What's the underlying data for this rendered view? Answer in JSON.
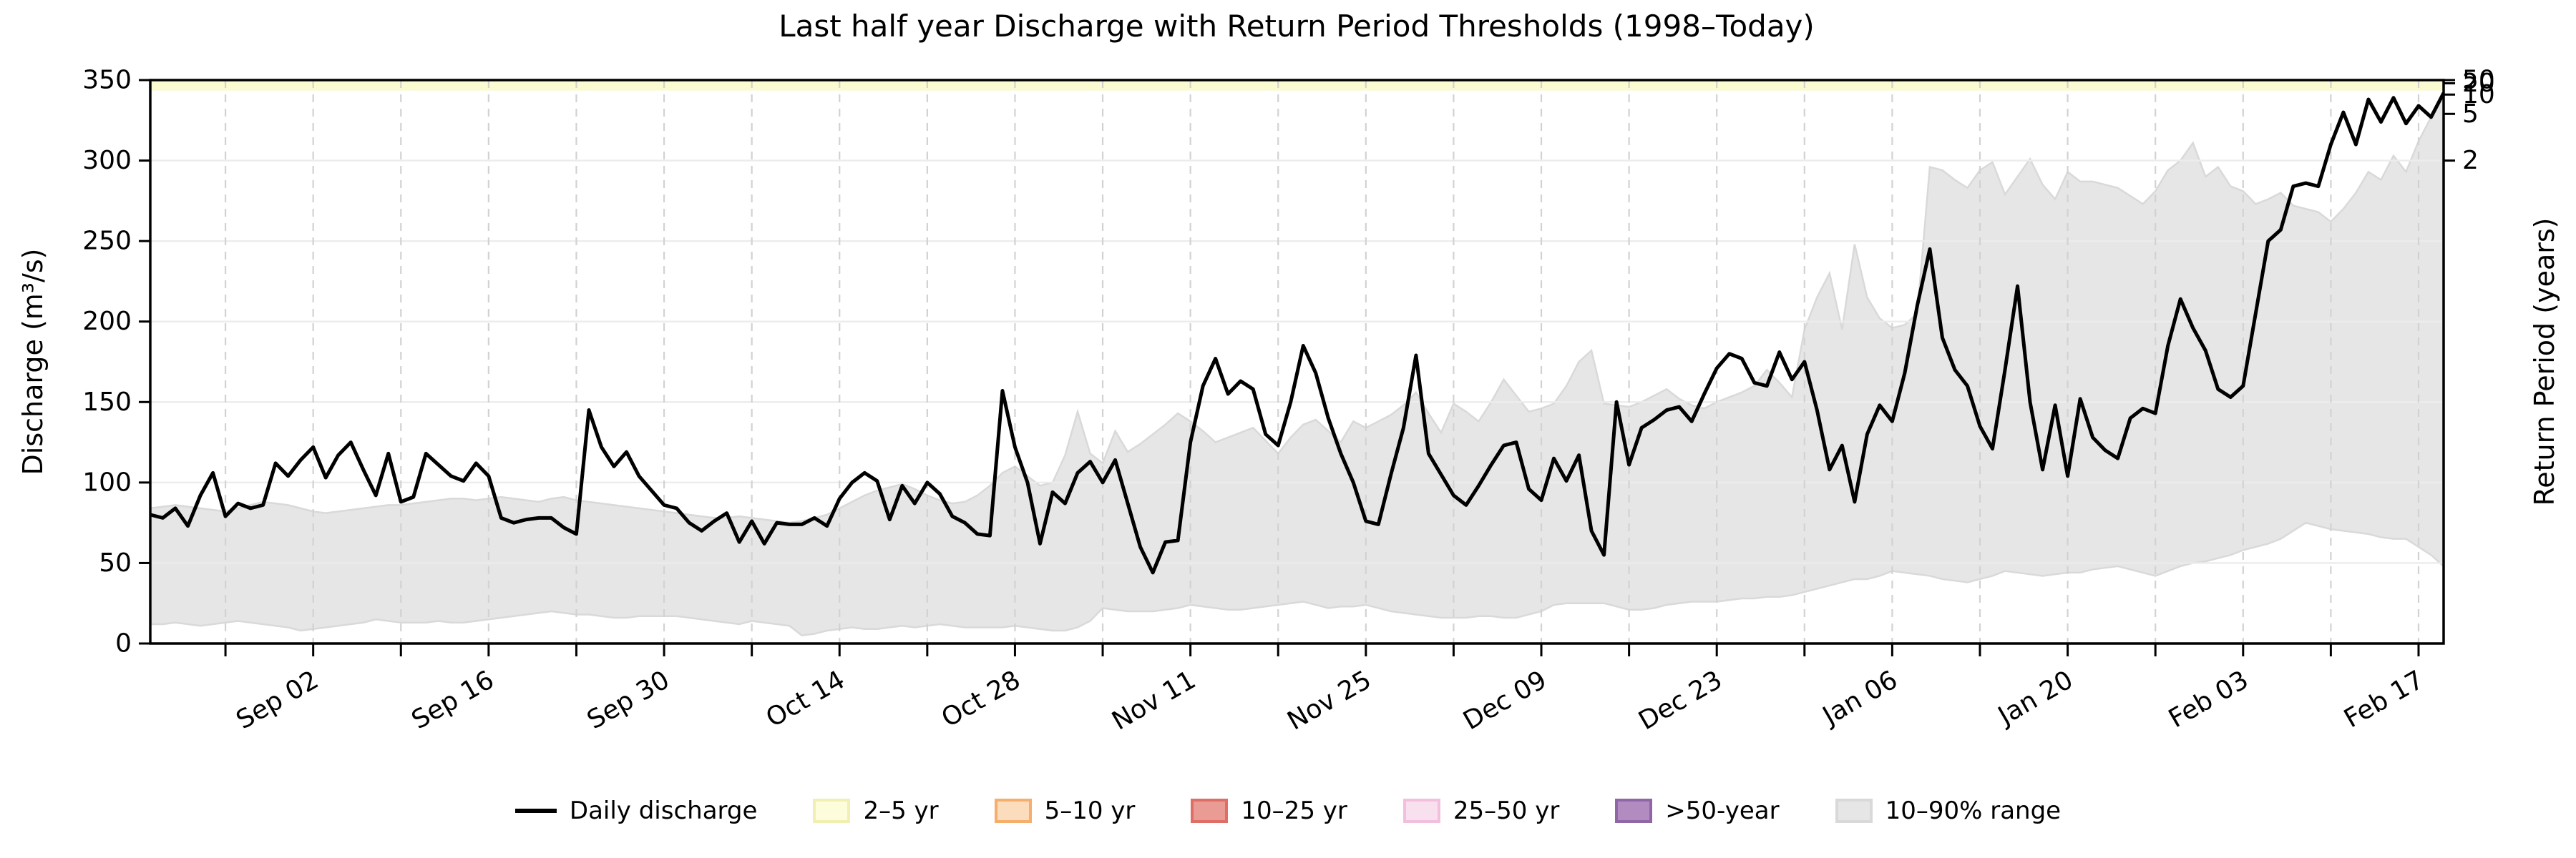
{
  "title": "Last half year Discharge with Return Period Thresholds (1998–Today)",
  "axes": {
    "left_label": "Discharge (m³/s)",
    "right_label": "Return Period (years)"
  },
  "legend": [
    {
      "label": "Daily discharge",
      "swatch": "line",
      "color": "#000000"
    },
    {
      "label": "2–5 yr",
      "swatch": "patch",
      "fill": "#FDFDDC",
      "border": "#F0F0B4"
    },
    {
      "label": "5–10 yr",
      "swatch": "patch",
      "fill": "#FBDCBC",
      "border": "#F5AE6C"
    },
    {
      "label": "10–25 yr",
      "swatch": "patch",
      "fill": "#EA9C94",
      "border": "#DF6F66"
    },
    {
      "label": "25–50 yr",
      "swatch": "patch",
      "fill": "#F9E0EE",
      "border": "#F2BFDC"
    },
    {
      "label": ">50-year",
      "swatch": "patch",
      "fill": "#B28CC0",
      "border": "#9066A6"
    },
    {
      "label": "10–90% range",
      "swatch": "patch",
      "fill": "#E6E6E6",
      "border": "#D9D9D9"
    }
  ],
  "chart_data": {
    "type": "line",
    "title": "Last half year Discharge with Return Period Thresholds (1998–Today)",
    "xlabel": "",
    "ylabel": "Discharge (m³/s)",
    "ylabel_right": "Return Period (years)",
    "ylim": [
      0,
      350
    ],
    "y_ticks": [
      0,
      50,
      100,
      150,
      200,
      250,
      300,
      350
    ],
    "x_start_date": "Aug 20",
    "x_end_date": "Feb 19",
    "grid": true,
    "legend_position": "bottom",
    "x_ticks": [
      {
        "day": 6,
        "label": ""
      },
      {
        "day": 13,
        "label": "Sep 02"
      },
      {
        "day": 20,
        "label": ""
      },
      {
        "day": 27,
        "label": "Sep 16"
      },
      {
        "day": 34,
        "label": ""
      },
      {
        "day": 41,
        "label": "Sep 30"
      },
      {
        "day": 48,
        "label": ""
      },
      {
        "day": 55,
        "label": "Oct 14"
      },
      {
        "day": 62,
        "label": ""
      },
      {
        "day": 69,
        "label": "Oct 28"
      },
      {
        "day": 76,
        "label": ""
      },
      {
        "day": 83,
        "label": "Nov 11"
      },
      {
        "day": 90,
        "label": ""
      },
      {
        "day": 97,
        "label": "Nov 25"
      },
      {
        "day": 104,
        "label": ""
      },
      {
        "day": 111,
        "label": "Dec 09"
      },
      {
        "day": 118,
        "label": ""
      },
      {
        "day": 125,
        "label": "Dec 23"
      },
      {
        "day": 132,
        "label": ""
      },
      {
        "day": 139,
        "label": "Jan 06"
      },
      {
        "day": 146,
        "label": ""
      },
      {
        "day": 153,
        "label": "Jan 20"
      },
      {
        "day": 160,
        "label": ""
      },
      {
        "day": 167,
        "label": "Feb 03"
      },
      {
        "day": 174,
        "label": ""
      },
      {
        "day": 181,
        "label": "Feb 17"
      }
    ],
    "return_period_ticks": [
      {
        "label": "50",
        "q": 352
      },
      {
        "label": "20",
        "q": 348
      },
      {
        "label": "10",
        "q": 341
      },
      {
        "label": "5",
        "q": 329
      },
      {
        "label": "2",
        "q": 300
      }
    ],
    "threshold_bands": [
      {
        "label": "2–5 yr",
        "q_from": 343.5,
        "q_to": 352,
        "fill": "#FBFBD2"
      }
    ],
    "series": [
      {
        "name": "Daily discharge",
        "color": "#000000",
        "values": [
          80,
          78,
          84,
          73,
          92,
          106,
          79,
          87,
          84,
          86,
          112,
          104,
          114,
          122,
          103,
          117,
          125,
          108,
          92,
          118,
          88,
          91,
          118,
          111,
          104,
          101,
          112,
          104,
          78,
          75,
          77,
          78,
          78,
          72,
          68,
          145,
          122,
          110,
          119,
          104,
          95,
          86,
          84,
          75,
          70,
          76,
          81,
          63,
          76,
          62,
          75,
          74,
          74,
          78,
          73,
          90,
          100,
          106,
          101,
          77,
          98,
          87,
          100,
          93,
          79,
          75,
          68,
          67,
          157,
          122,
          100,
          62,
          94,
          87,
          106,
          113,
          100,
          114,
          87,
          60,
          44,
          63,
          64,
          125,
          160,
          177,
          155,
          163,
          158,
          130,
          123,
          150,
          185,
          168,
          140,
          118,
          100,
          76,
          74,
          105,
          134,
          179,
          118,
          105,
          92,
          86,
          98,
          111,
          123,
          125,
          96,
          89,
          115,
          101,
          117,
          70,
          55,
          150,
          111,
          134,
          139,
          145,
          147,
          138,
          155,
          171,
          180,
          177,
          162,
          160,
          181,
          164,
          175,
          145,
          108,
          123,
          88,
          130,
          148,
          138,
          168,
          210,
          245,
          190,
          170,
          160,
          135,
          121,
          170,
          222,
          150,
          108,
          148,
          104,
          152,
          128,
          120,
          115,
          140,
          146,
          143,
          185,
          214,
          196,
          182,
          158,
          153,
          160,
          205,
          250,
          257,
          284,
          286,
          284,
          310,
          330,
          310,
          338,
          324,
          339,
          323,
          334,
          327,
          342
        ]
      },
      {
        "name": "10–90% upper",
        "fill": "#E6E6E6",
        "edge": "#D9D9D9",
        "values": [
          84,
          85,
          86,
          85,
          84,
          83,
          82,
          84,
          86,
          88,
          87,
          86,
          84,
          82,
          81,
          82,
          83,
          84,
          85,
          86,
          86,
          87,
          88,
          89,
          90,
          90,
          89,
          90,
          91,
          90,
          89,
          88,
          90,
          91,
          89,
          88,
          87,
          86,
          85,
          84,
          83,
          82,
          81,
          80,
          79,
          78,
          78,
          79,
          78,
          77,
          76,
          75,
          76,
          78,
          80,
          84,
          88,
          92,
          95,
          97,
          99,
          96,
          92,
          89,
          87,
          88,
          92,
          98,
          106,
          110,
          104,
          98,
          100,
          117,
          144,
          118,
          112,
          132,
          119,
          124,
          130,
          136,
          143,
          138,
          132,
          125,
          128,
          131,
          134,
          126,
          118,
          128,
          136,
          139,
          132,
          125,
          138,
          134,
          138,
          142,
          148,
          156,
          143,
          131,
          149,
          144,
          138,
          150,
          164,
          154,
          144,
          146,
          149,
          160,
          175,
          182,
          149,
          148,
          147,
          150,
          154,
          158,
          152,
          148,
          146,
          150,
          153,
          156,
          160,
          170,
          162,
          153,
          195,
          215,
          230,
          195,
          248,
          215,
          202,
          196,
          198,
          205,
          296,
          294,
          288,
          283,
          294,
          299,
          279,
          290,
          301,
          285,
          276,
          293,
          287,
          287,
          285,
          283,
          278,
          273,
          281,
          294,
          300,
          311,
          290,
          296,
          284,
          281,
          273,
          276,
          280,
          272,
          270,
          268,
          262,
          270,
          280,
          293,
          288,
          303,
          293,
          312,
          327,
          343
        ]
      },
      {
        "name": "10–90% lower",
        "values": [
          12,
          12,
          13,
          12,
          11,
          12,
          13,
          14,
          13,
          12,
          11,
          10,
          8,
          9,
          10,
          11,
          12,
          13,
          15,
          14,
          13,
          13,
          13,
          14,
          13,
          13,
          14,
          15,
          16,
          17,
          18,
          19,
          20,
          19,
          18,
          18,
          17,
          16,
          16,
          17,
          17,
          17,
          17,
          16,
          15,
          14,
          13,
          12,
          14,
          13,
          12,
          11,
          5,
          6,
          8,
          9,
          10,
          9,
          9,
          10,
          11,
          10,
          11,
          12,
          11,
          10,
          10,
          10,
          10,
          11,
          10,
          9,
          8,
          8,
          10,
          14,
          22,
          21,
          20,
          20,
          20,
          21,
          22,
          24,
          23,
          22,
          21,
          21,
          22,
          23,
          24,
          25,
          26,
          24,
          22,
          23,
          23,
          24,
          22,
          20,
          19,
          18,
          17,
          16,
          16,
          16,
          17,
          17,
          16,
          16,
          18,
          20,
          24,
          25,
          25,
          25,
          25,
          23,
          21,
          21,
          22,
          24,
          25,
          26,
          26,
          26,
          27,
          28,
          28,
          29,
          29,
          30,
          32,
          34,
          36,
          38,
          40,
          40,
          42,
          45,
          44,
          43,
          42,
          40,
          39,
          38,
          40,
          42,
          45,
          44,
          43,
          42,
          43,
          44,
          44,
          46,
          47,
          48,
          46,
          44,
          42,
          45,
          48,
          50,
          51,
          53,
          55,
          58,
          60,
          62,
          65,
          70,
          75,
          73,
          71,
          70,
          69,
          68,
          66,
          65,
          65,
          60,
          55,
          48
        ]
      }
    ]
  }
}
